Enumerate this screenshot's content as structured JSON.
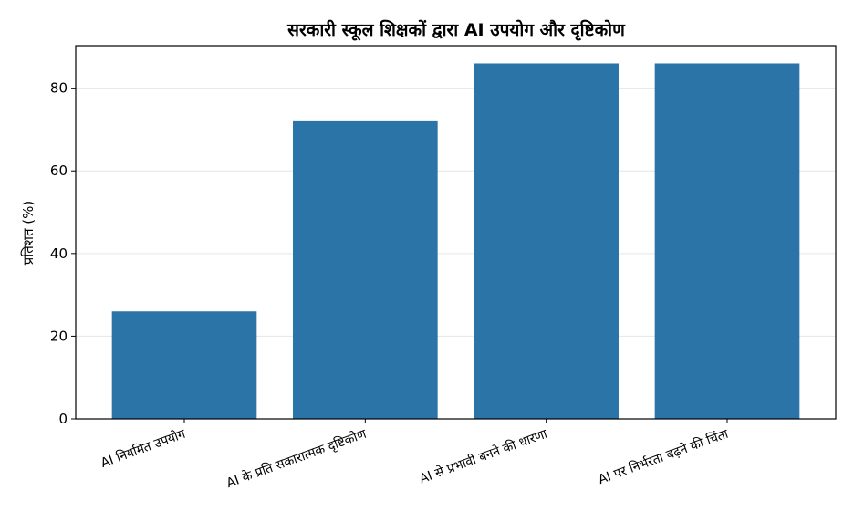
{
  "chart_data": {
    "type": "bar",
    "title": "सरकारी स्कूल शिक्षकों द्वारा AI उपयोग और दृष्टिकोण",
    "xlabel": "",
    "ylabel": "प्रतिशत (%)",
    "categories": [
      "AI नियमित उपयोग",
      "AI के प्रति सकारात्मक दृष्टिकोण",
      "AI से प्रभावी बनने की धारणा",
      "AI पर निर्भरता बढ़ने की चिंता"
    ],
    "values": [
      26,
      72,
      86,
      86
    ],
    "ylim": [
      0,
      90.3
    ],
    "yticks": [
      0,
      20,
      40,
      60,
      80
    ],
    "grid": "y",
    "bar_color": "#2a74a8"
  }
}
